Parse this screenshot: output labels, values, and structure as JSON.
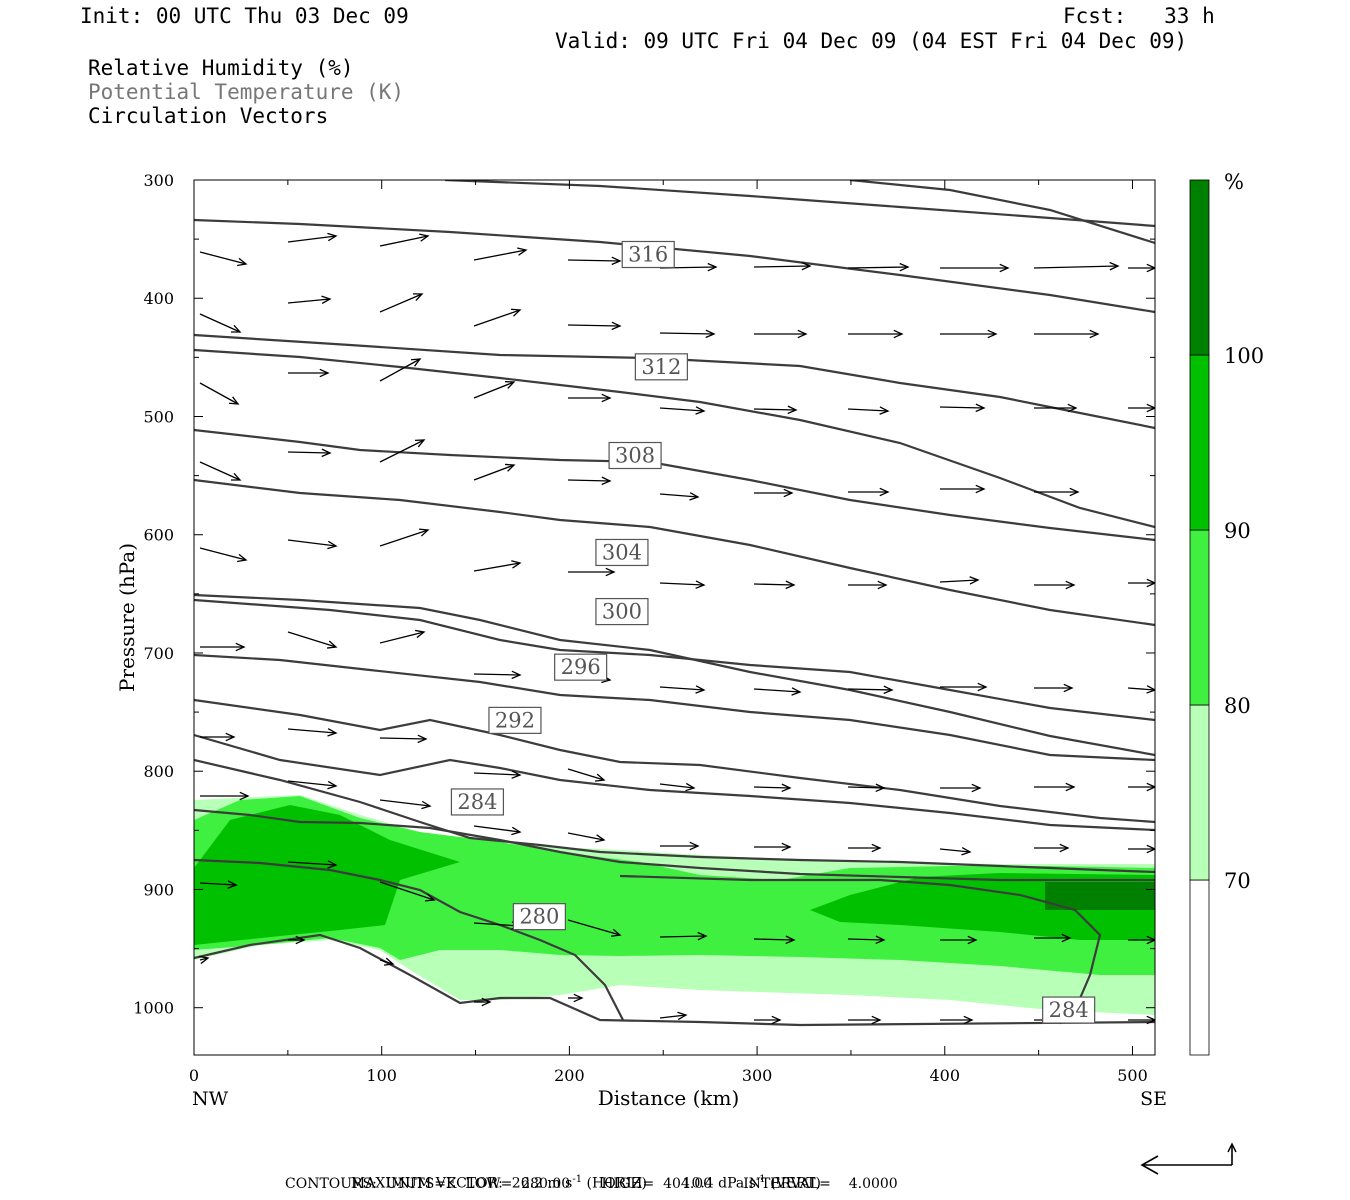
{
  "header": {
    "init": "Init: 00 UTC Thu 03 Dec 09",
    "fcst": "Fcst:   33 h",
    "valid": "Valid: 09 UTC Fri 04 Dec 09 (04 EST Fri 04 Dec 09)"
  },
  "legend": {
    "rh": "Relative Humidity (%)",
    "theta": "Potential Temperature (K)",
    "vectors": "Circulation Vectors"
  },
  "footer": {
    "max_vector": "MAXIMUM VECTOR:  26.2 m s",
    "max_vector_sup1": "-1",
    "max_vector_mid": " (HORIZ)        10.4 dPa s",
    "max_vector_sup2": "-1",
    "max_vector_end": " (VERT)",
    "contours": "CONTOURS:  UNITS=K  LOW=  280.00       HIGH=  404.00       INTERVAL=    4.0000"
  },
  "colors": {
    "rh70": "#b8ffb8",
    "rh80": "#40f040",
    "rh90": "#00c000",
    "rh100": "#008000",
    "contour": "#3c3c3c"
  },
  "chart_data": {
    "type": "cross-section",
    "xlabel": "Distance (km)",
    "ylabel": "Pressure (hPa)",
    "xlim": [
      0,
      512
    ],
    "ylim": [
      1040,
      300
    ],
    "x_ticks": [
      "0",
      "100",
      "200",
      "300",
      "400",
      "500"
    ],
    "y_ticks": [
      "300",
      "400",
      "500",
      "600",
      "700",
      "800",
      "900",
      "1000"
    ],
    "x_end_labels": [
      "NW",
      "SE"
    ],
    "colorbar": {
      "unit": "%",
      "levels": [
        "70",
        "80",
        "90",
        "100"
      ],
      "colors": [
        "#ffffff",
        "#b8ffb8",
        "#40f040",
        "#00c000",
        "#008000"
      ]
    },
    "theta_labels": [
      {
        "label": "316",
        "x": 242,
        "p": 363
      },
      {
        "label": "312",
        "x": 249,
        "p": 458
      },
      {
        "label": "308",
        "x": 235,
        "p": 533
      },
      {
        "label": "304",
        "x": 228,
        "p": 615
      },
      {
        "label": "300",
        "x": 228,
        "p": 665
      },
      {
        "label": "296",
        "x": 206,
        "p": 712
      },
      {
        "label": "292",
        "x": 171,
        "p": 757
      },
      {
        "label": "284",
        "x": 151,
        "p": 826
      },
      {
        "label": "280",
        "x": 184,
        "p": 923
      },
      {
        "label": "284",
        "x": 466,
        "p": 1002
      }
    ]
  }
}
